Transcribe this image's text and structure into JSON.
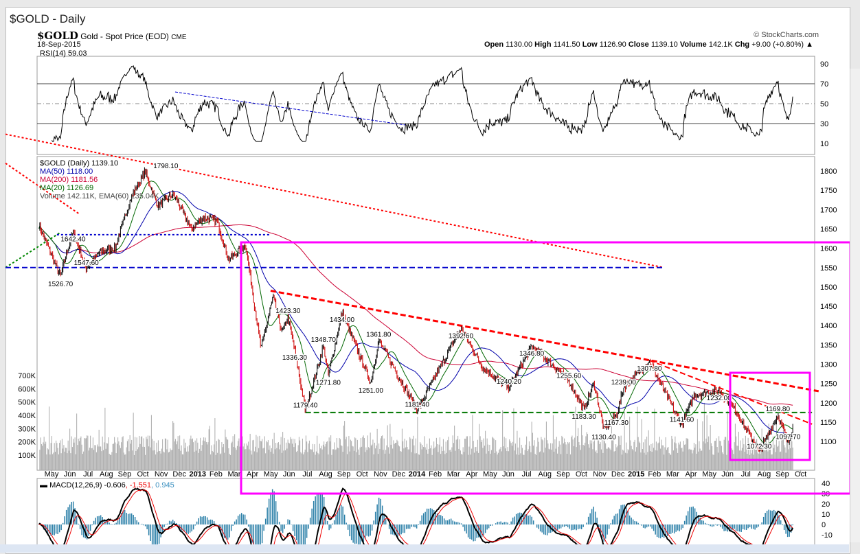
{
  "window_title": "$GOLD - Daily",
  "header": {
    "symbol": "$GOLD",
    "name": "Gold - Spot Price (EOD)",
    "exchange": "CME",
    "date": "18-Sep-2015",
    "copyright": "© StockCharts.com",
    "open_label": "Open",
    "open": "1130.00",
    "high_label": "High",
    "high": "1141.50",
    "low_label": "Low",
    "low": "1126.90",
    "close_label": "Close",
    "close": "1139.10",
    "volume_label": "Volume",
    "volume": "142.1K",
    "chg_label": "Chg",
    "chg": "+9.00 (+0.80%)"
  },
  "chart_data": {
    "type": "line",
    "title": "$GOLD (Daily) 1139.10",
    "legend": {
      "price": "$GOLD (Daily) 1139.10",
      "ma50": "MA(50) 1118.00",
      "ma200": "MA(200) 1181.56",
      "ma20": "MA(20) 1126.69",
      "volume": "Volume 142.11K, EMA(60) 135.04K",
      "rsi": "RSI(14) 59.03",
      "macd": "MACD(12,26,9) -0.606",
      "macd_signal": ", -1.551",
      "macd_hist": ", 0.945"
    },
    "colors": {
      "price_up": "#000000",
      "price_down": "#cc0000",
      "ma50": "#0000aa",
      "ma200": "#cc0033",
      "ma20": "#006600",
      "magenta": "#ff00ff",
      "trend": "#ff0000",
      "support": "#007700",
      "blue_line": "#0000cc",
      "macd_hist": "#2a7fa8"
    },
    "price_ylim": [
      1050,
      1830
    ],
    "price_ticks": [
      1100,
      1150,
      1200,
      1250,
      1300,
      1350,
      1400,
      1450,
      1500,
      1550,
      1600,
      1650,
      1700,
      1750,
      1800
    ],
    "rsi_ticks": [
      10,
      30,
      50,
      70,
      90
    ],
    "volume_ticks": [
      "100K",
      "200K",
      "300K",
      "400K",
      "500K",
      "600K",
      "700K"
    ],
    "macd_ticks": [
      40,
      30,
      20,
      10,
      0,
      -10
    ],
    "x_ticks": [
      "May",
      "Jun",
      "Jul",
      "Aug",
      "Sep",
      "Oct",
      "Nov",
      "Dec",
      "2013",
      "Feb",
      "Mar",
      "Apr",
      "May",
      "Jun",
      "Jul",
      "Aug",
      "Sep",
      "Oct",
      "Nov",
      "Dec",
      "2014",
      "Feb",
      "Mar",
      "Apr",
      "May",
      "Jun",
      "Jul",
      "Aug",
      "Sep",
      "Oct",
      "Nov",
      "Dec",
      "2015",
      "Feb",
      "Mar",
      "Apr",
      "May",
      "Jun",
      "Jul",
      "Aug",
      "Sep",
      "Oct"
    ],
    "price_points": [
      [
        "2012-04-10",
        1660
      ],
      [
        "2012-05-16",
        1526.7
      ],
      [
        "2012-05-25",
        1580
      ],
      [
        "2012-06-06",
        1642.4
      ],
      [
        "2012-06-28",
        1547.6
      ],
      [
        "2012-07-20",
        1590
      ],
      [
        "2012-08-15",
        1600
      ],
      [
        "2012-09-10",
        1730
      ],
      [
        "2012-10-04",
        1798.1
      ],
      [
        "2012-10-25",
        1710
      ],
      [
        "2012-11-20",
        1740
      ],
      [
        "2012-12-20",
        1650
      ],
      [
        "2013-01-10",
        1680
      ],
      [
        "2013-02-01",
        1670
      ],
      [
        "2013-02-20",
        1570
      ],
      [
        "2013-03-20",
        1610
      ],
      [
        "2013-04-15",
        1340
      ],
      [
        "2013-05-05",
        1475
      ],
      [
        "2013-05-20",
        1380
      ],
      [
        "2013-05-30",
        1423.3
      ],
      [
        "2013-06-10",
        1336.3
      ],
      [
        "2013-06-28",
        1179.4
      ],
      [
        "2013-07-20",
        1300
      ],
      [
        "2013-07-28",
        1348.7
      ],
      [
        "2013-08-05",
        1271.8
      ],
      [
        "2013-08-28",
        1434
      ],
      [
        "2013-10-15",
        1251
      ],
      [
        "2013-10-28",
        1361.8
      ],
      [
        "2013-12-31",
        1181.4
      ],
      [
        "2014-03-14",
        1392.6
      ],
      [
        "2014-04-20",
        1290
      ],
      [
        "2014-06-02",
        1240.2
      ],
      [
        "2014-07-10",
        1346.8
      ],
      [
        "2014-08-20",
        1290
      ],
      [
        "2014-09-10",
        1255.6
      ],
      [
        "2014-10-05",
        1183.3
      ],
      [
        "2014-10-22",
        1250
      ],
      [
        "2014-11-07",
        1130.4
      ],
      [
        "2014-11-28",
        1167.3
      ],
      [
        "2014-12-10",
        1239
      ],
      [
        "2015-01-22",
        1307.8
      ],
      [
        "2015-03-17",
        1141.6
      ],
      [
        "2015-04-06",
        1220
      ],
      [
        "2015-05-18",
        1232
      ],
      [
        "2015-06-15",
        1180
      ],
      [
        "2015-07-24",
        1072.3
      ],
      [
        "2015-08-24",
        1169.8
      ],
      [
        "2015-09-10",
        1097.7
      ],
      [
        "2015-09-18",
        1139.1
      ]
    ],
    "annotations": [
      {
        "text": "1798.10",
        "date": "2012-10-04",
        "price": 1798.1
      },
      {
        "text": "1642.40",
        "date": "2012-06-06",
        "price": 1642.4
      },
      {
        "text": "1526.70",
        "date": "2012-05-16",
        "price": 1526.7
      },
      {
        "text": "1547.60",
        "date": "2012-06-28",
        "price": 1547.6
      },
      {
        "text": "1423.30",
        "date": "2013-05-30",
        "price": 1423.3
      },
      {
        "text": "1336.30",
        "date": "2013-06-10",
        "price": 1336.3
      },
      {
        "text": "1179.40",
        "date": "2013-06-28",
        "price": 1179.4
      },
      {
        "text": "1434.00",
        "date": "2013-08-28",
        "price": 1434
      },
      {
        "text": "1348.70",
        "date": "2013-07-28",
        "price": 1348.7
      },
      {
        "text": "1271.80",
        "date": "2013-08-05",
        "price": 1271.8
      },
      {
        "text": "1361.80",
        "date": "2013-10-28",
        "price": 1361.8
      },
      {
        "text": "1251.00",
        "date": "2013-10-15",
        "price": 1251
      },
      {
        "text": "1181.40",
        "date": "2013-12-31",
        "price": 1181.4
      },
      {
        "text": "1392.60",
        "date": "2014-03-14",
        "price": 1392.6
      },
      {
        "text": "1240.20",
        "date": "2014-06-02",
        "price": 1240.2
      },
      {
        "text": "1346.80",
        "date": "2014-07-10",
        "price": 1346.8
      },
      {
        "text": "1255.60",
        "date": "2014-09-10",
        "price": 1255.6
      },
      {
        "text": "1183.30",
        "date": "2014-10-05",
        "price": 1183.3
      },
      {
        "text": "1130.40",
        "date": "2014-11-07",
        "price": 1130.4
      },
      {
        "text": "1167.30",
        "date": "2014-11-28",
        "price": 1167.3
      },
      {
        "text": "1239.00",
        "date": "2014-12-10",
        "price": 1239
      },
      {
        "text": "1307.80",
        "date": "2015-01-22",
        "price": 1307.8
      },
      {
        "text": "1141.60",
        "date": "2015-03-17",
        "price": 1141.6
      },
      {
        "text": "1232.00",
        "date": "2015-05-18",
        "price": 1232
      },
      {
        "text": "1169.80",
        "date": "2015-08-24",
        "price": 1169.8
      },
      {
        "text": "1072.30",
        "date": "2015-07-24",
        "price": 1072.3
      },
      {
        "text": "1097.70",
        "date": "2015-09-10",
        "price": 1097.7
      }
    ],
    "trendlines": [
      {
        "name": "long-downtrend",
        "color": "#ff0000",
        "from": [
          "2012-02-01",
          1895
        ],
        "to": [
          "2015-02-15",
          1550
        ]
      },
      {
        "name": "red-dotted-upper",
        "color": "#ff0000",
        "from": [
          "2012-02-01",
          1820
        ],
        "to": [
          "2012-06-15",
          1690
        ]
      },
      {
        "name": "green-uptrend",
        "color": "#008800",
        "from": [
          "2012-02-01",
          1550
        ],
        "to": [
          "2012-05-15",
          1640
        ]
      },
      {
        "name": "support-1550",
        "color": "#0000cc",
        "from": [
          "2012-02-01",
          1550
        ],
        "to": [
          "2015-02-15",
          1550
        ]
      },
      {
        "name": "dotted-1635",
        "color": "#0000cc",
        "from": [
          "2012-05-10",
          1635
        ],
        "to": [
          "2013-04-30",
          1635
        ]
      },
      {
        "name": "downtrend-2013",
        "color": "#ff0000",
        "from": [
          "2013-05-01",
          1490
        ],
        "to": [
          "2015-10-31",
          1230
        ]
      },
      {
        "name": "downtrend-2015",
        "color": "#ff0000",
        "from": [
          "2015-01-22",
          1310
        ],
        "to": [
          "2015-10-20",
          1145
        ]
      },
      {
        "name": "support-1175",
        "color": "#007700",
        "from": [
          "2013-06-28",
          1175
        ],
        "to": [
          "2015-10-20",
          1175
        ]
      }
    ]
  }
}
